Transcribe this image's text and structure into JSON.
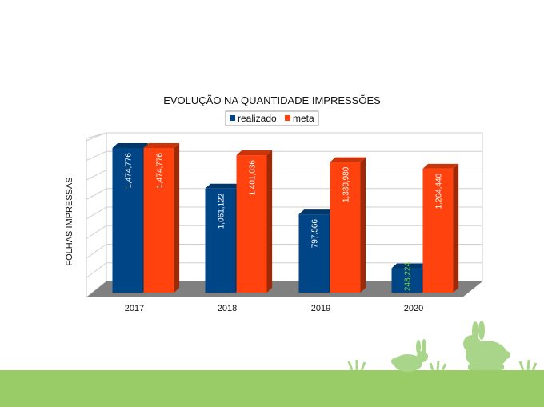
{
  "chart_data": {
    "type": "bar",
    "title": "EVOLUÇÃO NA QUANTIDADE IMPRESSÕES",
    "xlabel": "",
    "ylabel": "FOLHAS IMPRESSAS",
    "categories": [
      "2017",
      "2018",
      "2019",
      "2020"
    ],
    "series": [
      {
        "name": "realizado",
        "color": "#004586",
        "values": [
          1474776,
          1061122,
          797566,
          248224
        ],
        "labels": [
          "1,474,776",
          "1,061,122",
          "797,566",
          "248,224"
        ]
      },
      {
        "name": "meta",
        "color": "#ff420e",
        "values": [
          1474776,
          1401036,
          1330980,
          1264440
        ],
        "labels": [
          "1,474,776",
          "1,401,036",
          "1,330,980",
          "1,264,440"
        ]
      }
    ],
    "ylim": [
      0,
      1600000
    ],
    "grid": true,
    "three_d": true,
    "legend_position": "top",
    "highlight_label_color": "#7ac943"
  },
  "decor": {
    "ground_color": "#99cc66",
    "bunny_color": "#a8d58a",
    "icons": [
      "rabbit-silhouette",
      "grass-tuft"
    ]
  }
}
